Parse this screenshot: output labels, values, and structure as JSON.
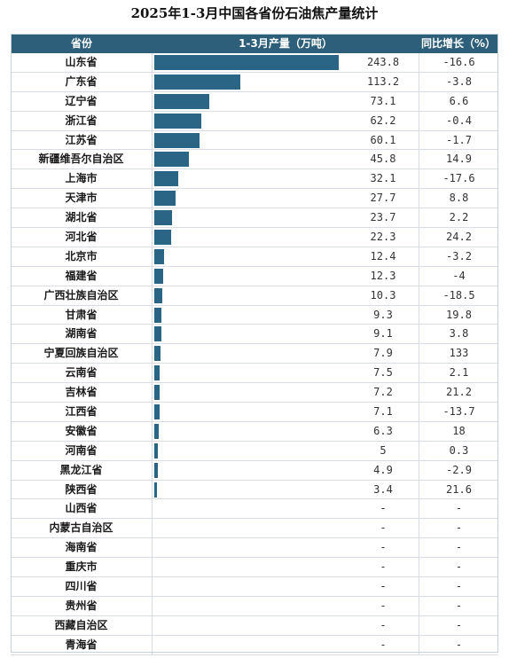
{
  "title": "2025年1-3月中国各省份石油焦产量统计",
  "headers": {
    "province": "省份",
    "production": "1-3月产量（万吨）",
    "yoy": "同比增长（%）"
  },
  "chart_data": {
    "type": "bar",
    "title": "2025年1-3月中国各省份石油焦产量统计",
    "categories": [
      "山东省",
      "广东省",
      "辽宁省",
      "浙江省",
      "江苏省",
      "新疆维吾尔自治区",
      "上海市",
      "天津市",
      "湖北省",
      "河北省",
      "北京市",
      "福建省",
      "广西壮族自治区",
      "甘肃省",
      "湖南省",
      "宁夏回族自治区",
      "云南省",
      "吉林省",
      "江西省",
      "安徽省",
      "河南省",
      "黑龙江省",
      "陕西省",
      "山西省",
      "内蒙古自治区",
      "海南省",
      "重庆市",
      "四川省",
      "贵州省",
      "西藏自治区",
      "青海省"
    ],
    "values": [
      243.8,
      113.2,
      73.1,
      62.2,
      60.1,
      45.8,
      32.1,
      27.7,
      23.7,
      22.3,
      12.4,
      12.3,
      10.3,
      9.3,
      9.1,
      7.9,
      7.5,
      7.2,
      7.1,
      6.3,
      5,
      4.9,
      3.4,
      null,
      null,
      null,
      null,
      null,
      null,
      null,
      null
    ],
    "value_labels": [
      "243.8",
      "113.2",
      "73.1",
      "62.2",
      "60.1",
      "45.8",
      "32.1",
      "27.7",
      "23.7",
      "22.3",
      "12.4",
      "12.3",
      "10.3",
      "9.3",
      "9.1",
      "7.9",
      "7.5",
      "7.2",
      "7.1",
      "6.3",
      "5",
      "4.9",
      "3.4",
      "-",
      "-",
      "-",
      "-",
      "-",
      "-",
      "-",
      "-"
    ],
    "yoy_labels": [
      "-16.6",
      "-3.8",
      "6.6",
      "-0.4",
      "-1.7",
      "14.9",
      "-17.6",
      "8.8",
      "2.2",
      "24.2",
      "-3.2",
      "-4",
      "-18.5",
      "19.8",
      "3.8",
      "133",
      "2.1",
      "21.2",
      "-13.7",
      "18",
      "0.3",
      "-2.9",
      "21.6",
      "-",
      "-",
      "-",
      "-",
      "-",
      "-",
      "-",
      "-"
    ],
    "max_value": 243.8
  },
  "colors": {
    "header": "#2d5f7a",
    "bar": "#2a6585"
  }
}
